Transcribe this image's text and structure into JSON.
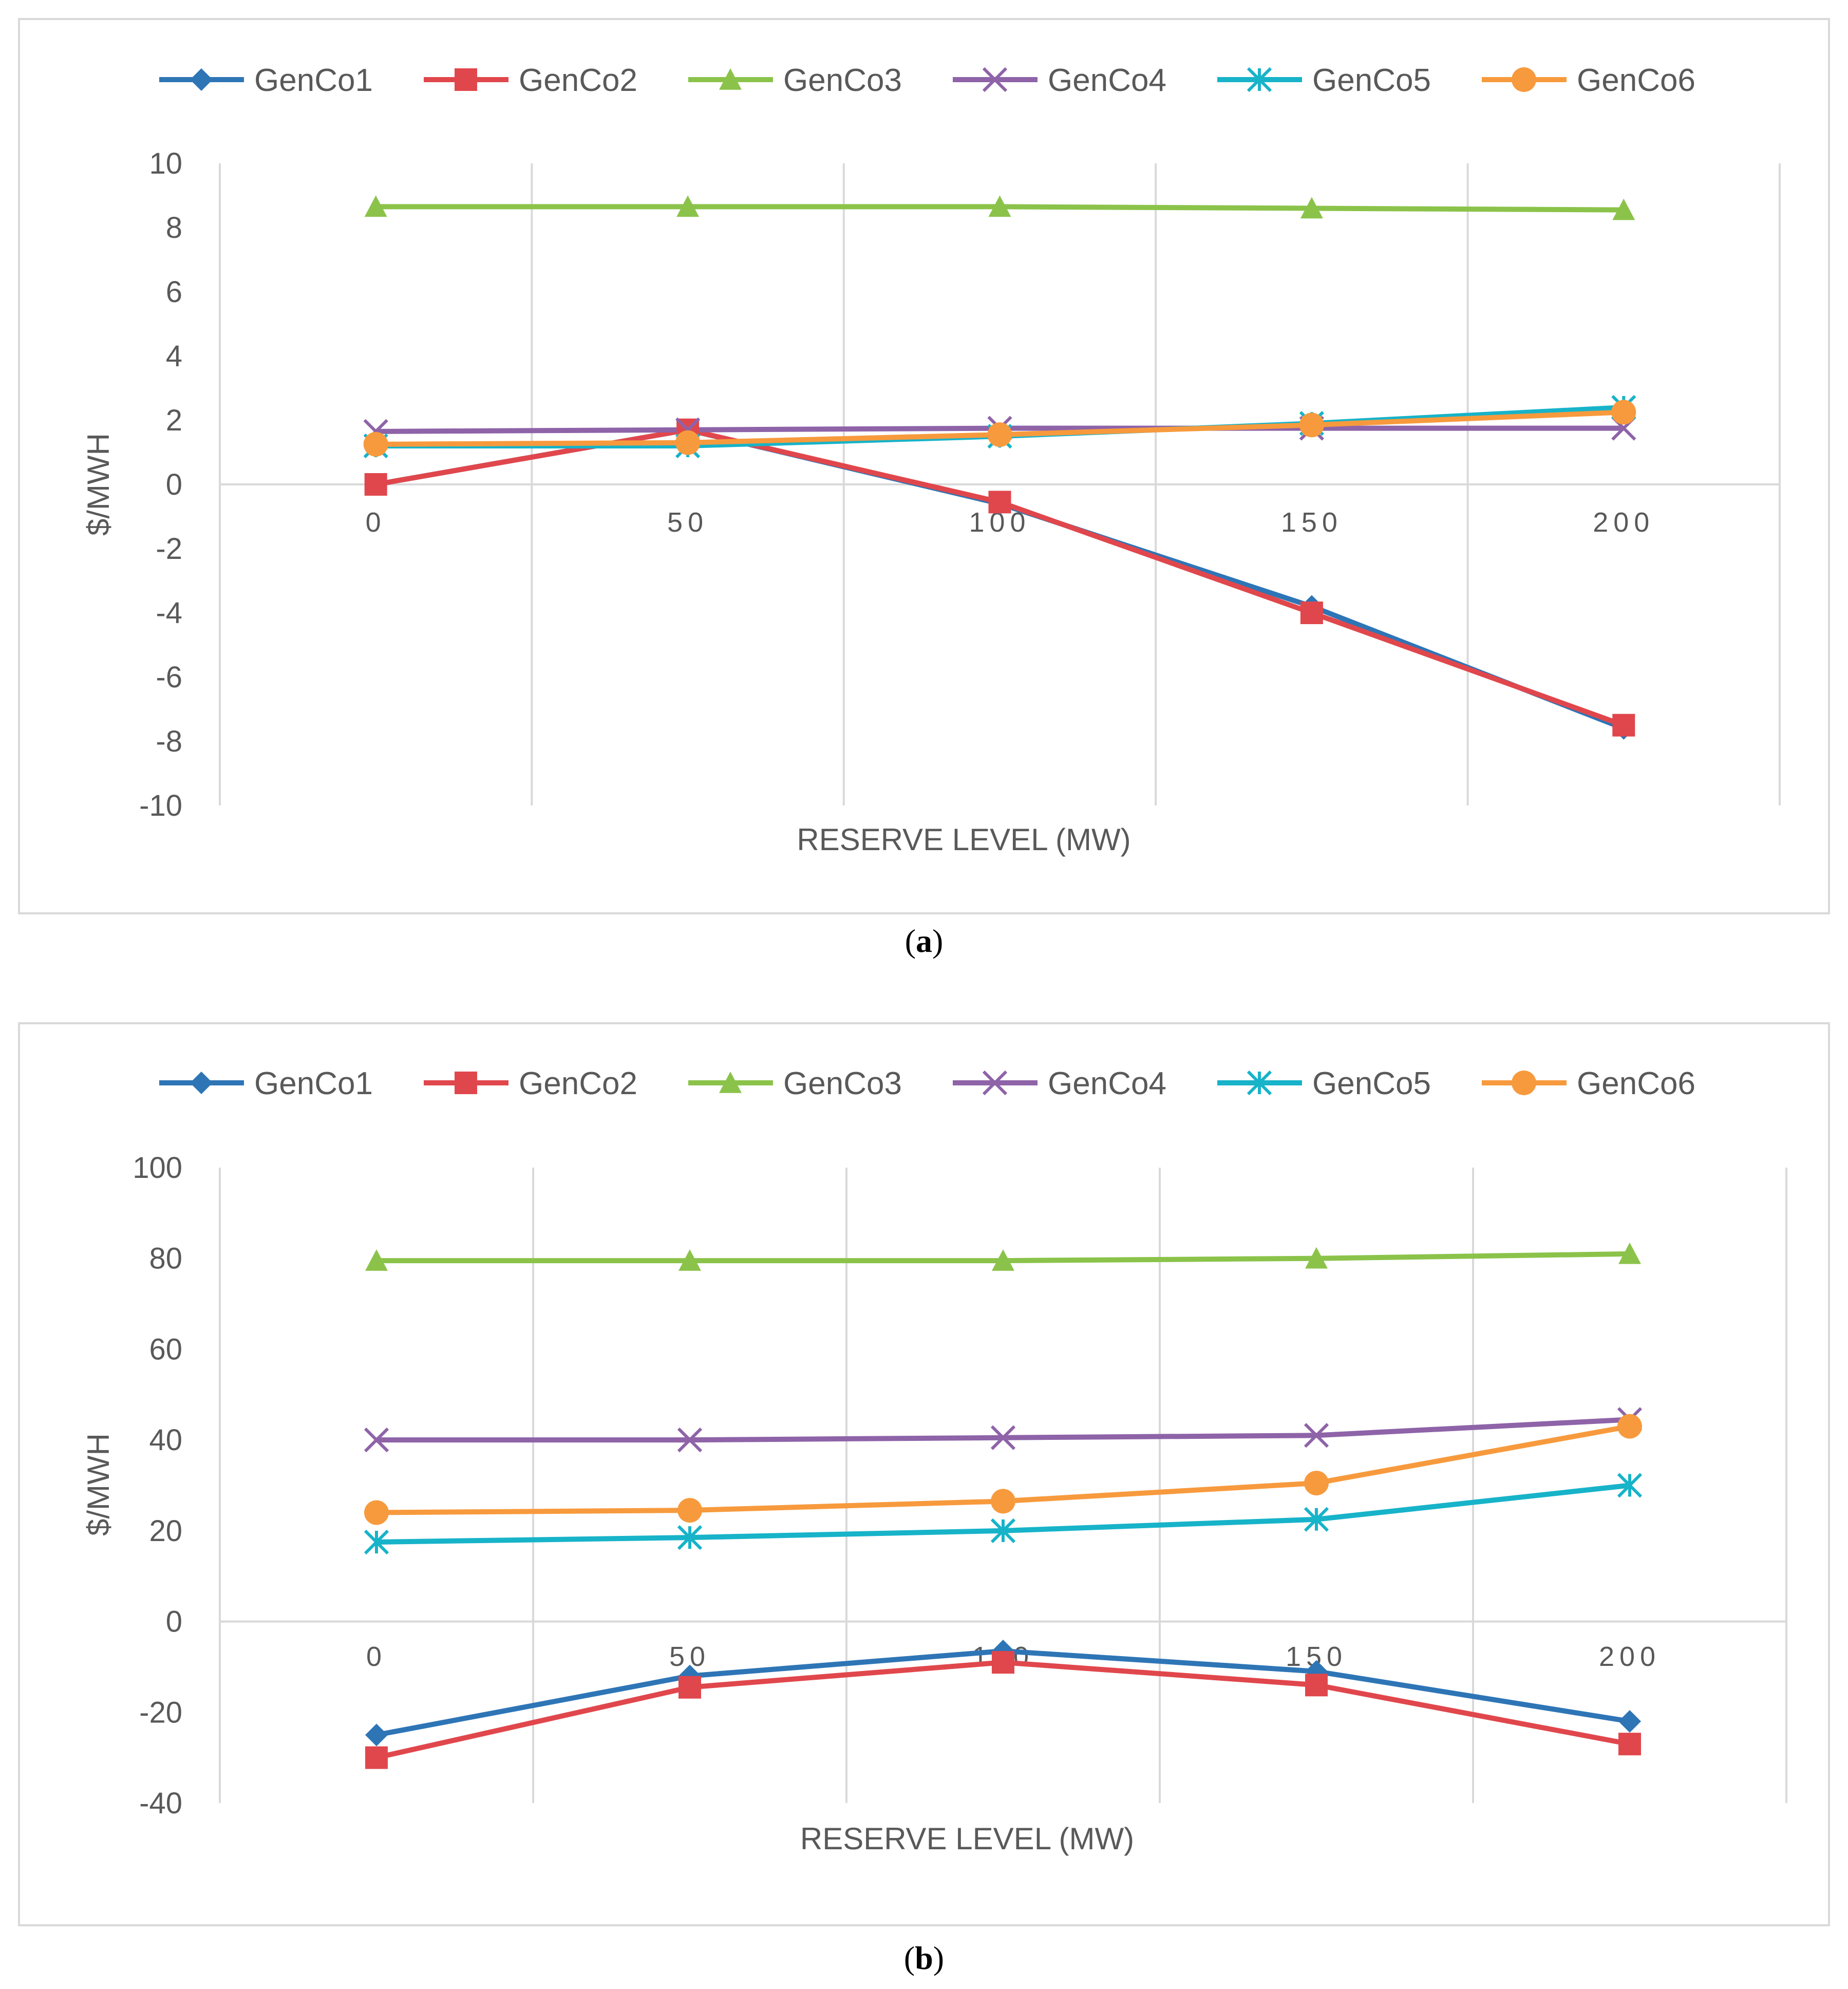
{
  "chart_data": [
    {
      "type": "line",
      "panel_label": "a",
      "title": "",
      "xlabel": "RESERVE LEVEL (MW)",
      "ylabel": "$/MWH",
      "categories": [
        "0",
        "50",
        "100",
        "150",
        "200"
      ],
      "ylim": [
        -10,
        10
      ],
      "yticks": [
        -10,
        -8,
        -6,
        -4,
        -2,
        0,
        2,
        4,
        6,
        8,
        10
      ],
      "grid": "vertical",
      "legend": "top",
      "series": [
        {
          "name": "GenCo1",
          "color": "#2e75b6",
          "marker": "diamond",
          "values": [
            0,
            1.7,
            -0.6,
            -3.8,
            -7.6
          ]
        },
        {
          "name": "GenCo2",
          "color": "#e0474c",
          "marker": "square",
          "values": [
            0,
            1.7,
            -0.55,
            -4.0,
            -7.5
          ]
        },
        {
          "name": "GenCo3",
          "color": "#8bc34a",
          "marker": "triangle",
          "values": [
            8.65,
            8.65,
            8.65,
            8.6,
            8.55
          ]
        },
        {
          "name": "GenCo4",
          "color": "#8e63a8",
          "marker": "x",
          "values": [
            1.65,
            1.7,
            1.75,
            1.75,
            1.75
          ]
        },
        {
          "name": "GenCo5",
          "color": "#17b3c9",
          "marker": "star",
          "values": [
            1.2,
            1.2,
            1.5,
            1.9,
            2.4
          ]
        },
        {
          "name": "GenCo6",
          "color": "#f79a3d",
          "marker": "circle",
          "values": [
            1.25,
            1.3,
            1.55,
            1.85,
            2.25
          ]
        }
      ]
    },
    {
      "type": "line",
      "panel_label": "b",
      "title": "",
      "xlabel": "RESERVE LEVEL (MW)",
      "ylabel": "$/MWH",
      "categories": [
        "0",
        "50",
        "100",
        "150",
        "200"
      ],
      "ylim": [
        -40,
        100
      ],
      "yticks": [
        -40,
        -20,
        0,
        20,
        40,
        60,
        80,
        100
      ],
      "grid": "vertical",
      "legend": "top",
      "series": [
        {
          "name": "GenCo1",
          "color": "#2e75b6",
          "marker": "diamond",
          "values": [
            -25,
            -12,
            -6.5,
            -11,
            -22
          ]
        },
        {
          "name": "GenCo2",
          "color": "#e0474c",
          "marker": "square",
          "values": [
            -30,
            -14.5,
            -9,
            -14,
            -27
          ]
        },
        {
          "name": "GenCo3",
          "color": "#8bc34a",
          "marker": "triangle",
          "values": [
            79.5,
            79.5,
            79.5,
            80,
            81
          ]
        },
        {
          "name": "GenCo4",
          "color": "#8e63a8",
          "marker": "x",
          "values": [
            40,
            40,
            40.5,
            41,
            44.5
          ]
        },
        {
          "name": "GenCo5",
          "color": "#17b3c9",
          "marker": "star",
          "values": [
            17.5,
            18.5,
            20,
            22.5,
            30
          ]
        },
        {
          "name": "GenCo6",
          "color": "#f79a3d",
          "marker": "circle",
          "values": [
            24,
            24.5,
            26.5,
            30.5,
            43
          ]
        }
      ]
    }
  ],
  "captions": {
    "a": "(a)",
    "a_letter": "a",
    "b": "(b)",
    "b_letter": "b"
  }
}
